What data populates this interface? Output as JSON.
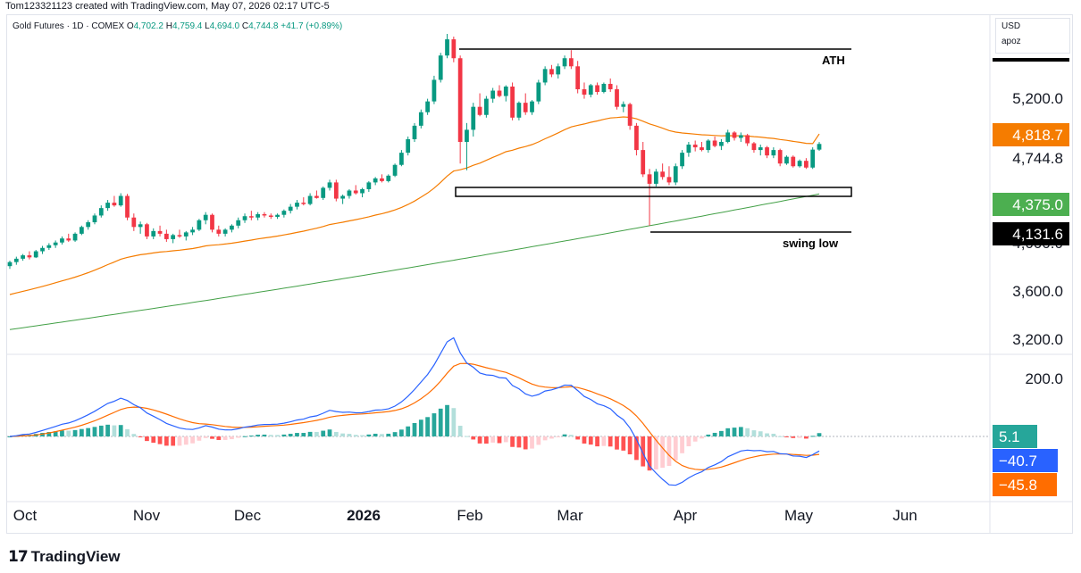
{
  "header": {
    "credit": "Tom123321123 created with TradingView.com, May 07, 2026 02:17 UTC-5"
  },
  "legend": {
    "symbol": "Gold Futures · 1D · COMEX",
    "o_label": "O",
    "o_value": "4,702.2",
    "h_label": "H",
    "h_value": "4,759.4",
    "l_label": "L",
    "l_value": "4,694.0",
    "c_label": "C",
    "c_value": "4,744.8",
    "change": "+41.7 (+0.89%)"
  },
  "currency_box": {
    "currency": "USD",
    "unit": "apoz"
  },
  "footer": {
    "brand": "TradingView"
  },
  "chart_data": [
    {
      "type": "line",
      "series_type": "candlestick",
      "y_ticks": [
        "5,200.0",
        "4,000.0",
        "3,600.0",
        "3,200.0"
      ],
      "x_ticks": [
        "Oct",
        "Nov",
        "Dec",
        "2026",
        "Feb",
        "Mar",
        "Apr",
        "May",
        "Jun"
      ],
      "ylim": [
        3200,
        5560
      ],
      "candles": [
        [
          3840,
          3880,
          3820,
          3870
        ],
        [
          3870,
          3910,
          3850,
          3895
        ],
        [
          3895,
          3930,
          3880,
          3920
        ],
        [
          3920,
          3950,
          3890,
          3905
        ],
        [
          3905,
          3960,
          3900,
          3950
        ],
        [
          3950,
          3990,
          3930,
          3975
        ],
        [
          3975,
          4010,
          3960,
          3995
        ],
        [
          3995,
          4030,
          3975,
          4015
        ],
        [
          4015,
          4060,
          4000,
          4045
        ],
        [
          4045,
          4080,
          4020,
          4030
        ],
        [
          4030,
          4090,
          4020,
          4080
        ],
        [
          4080,
          4140,
          4070,
          4130
        ],
        [
          4130,
          4180,
          4110,
          4165
        ],
        [
          4165,
          4230,
          4150,
          4215
        ],
        [
          4215,
          4290,
          4200,
          4270
        ],
        [
          4270,
          4330,
          4250,
          4310
        ],
        [
          4310,
          4360,
          4280,
          4290
        ],
        [
          4290,
          4380,
          4280,
          4360
        ],
        [
          4360,
          4375,
          4180,
          4200
        ],
        [
          4200,
          4230,
          4100,
          4130
        ],
        [
          4130,
          4170,
          4080,
          4150
        ],
        [
          4150,
          4160,
          4040,
          4060
        ],
        [
          4060,
          4120,
          4040,
          4100
        ],
        [
          4100,
          4140,
          4060,
          4080
        ],
        [
          4080,
          4110,
          4020,
          4040
        ],
        [
          4040,
          4080,
          4010,
          4070
        ],
        [
          4070,
          4110,
          4050,
          4060
        ],
        [
          4060,
          4100,
          4030,
          4090
        ],
        [
          4090,
          4130,
          4070,
          4110
        ],
        [
          4110,
          4190,
          4100,
          4180
        ],
        [
          4180,
          4240,
          4150,
          4220
        ],
        [
          4220,
          4230,
          4090,
          4110
        ],
        [
          4110,
          4140,
          4060,
          4080
        ],
        [
          4080,
          4120,
          4060,
          4110
        ],
        [
          4110,
          4150,
          4090,
          4140
        ],
        [
          4140,
          4200,
          4120,
          4180
        ],
        [
          4180,
          4230,
          4160,
          4210
        ],
        [
          4210,
          4250,
          4180,
          4200
        ],
        [
          4200,
          4240,
          4180,
          4225
        ],
        [
          4225,
          4240,
          4200,
          4215
        ],
        [
          4215,
          4230,
          4190,
          4205
        ],
        [
          4205,
          4230,
          4190,
          4220
        ],
        [
          4220,
          4260,
          4200,
          4250
        ],
        [
          4250,
          4300,
          4230,
          4280
        ],
        [
          4280,
          4330,
          4260,
          4310
        ],
        [
          4310,
          4350,
          4290,
          4300
        ],
        [
          4300,
          4380,
          4290,
          4360
        ],
        [
          4360,
          4400,
          4340,
          4345
        ],
        [
          4345,
          4430,
          4330,
          4420
        ],
        [
          4420,
          4480,
          4400,
          4460
        ],
        [
          4460,
          4480,
          4320,
          4340
        ],
        [
          4340,
          4370,
          4300,
          4360
        ],
        [
          4360,
          4410,
          4340,
          4400
        ],
        [
          4400,
          4440,
          4370,
          4380
        ],
        [
          4380,
          4420,
          4350,
          4410
        ],
        [
          4410,
          4470,
          4390,
          4460
        ],
        [
          4460,
          4500,
          4440,
          4490
        ],
        [
          4490,
          4520,
          4460,
          4470
        ],
        [
          4470,
          4520,
          4460,
          4510
        ],
        [
          4510,
          4600,
          4500,
          4590
        ],
        [
          4590,
          4700,
          4580,
          4680
        ],
        [
          4680,
          4800,
          4660,
          4780
        ],
        [
          4780,
          4900,
          4760,
          4880
        ],
        [
          4880,
          5000,
          4860,
          4980
        ],
        [
          4980,
          5080,
          4960,
          5060
        ],
        [
          5060,
          5250,
          5040,
          5220
        ],
        [
          5220,
          5420,
          5200,
          5400
        ],
        [
          5400,
          5560,
          5380,
          5520
        ],
        [
          5520,
          5540,
          5350,
          5380
        ],
        [
          5380,
          5400,
          4600,
          4760
        ],
        [
          4760,
          4900,
          4550,
          4850
        ],
        [
          4850,
          5050,
          4800,
          5020
        ],
        [
          5020,
          5120,
          4950,
          4960
        ],
        [
          4960,
          5100,
          4940,
          5080
        ],
        [
          5080,
          5160,
          5050,
          5140
        ],
        [
          5140,
          5180,
          5090,
          5100
        ],
        [
          5100,
          5180,
          5060,
          5170
        ],
        [
          5170,
          5200,
          4920,
          4940
        ],
        [
          4940,
          5060,
          4920,
          5050
        ],
        [
          5050,
          5120,
          4960,
          4980
        ],
        [
          4980,
          5070,
          4960,
          5060
        ],
        [
          5060,
          5220,
          5040,
          5200
        ],
        [
          5200,
          5320,
          5180,
          5300
        ],
        [
          5300,
          5330,
          5240,
          5260
        ],
        [
          5260,
          5340,
          5230,
          5320
        ],
        [
          5320,
          5400,
          5300,
          5380
        ],
        [
          5380,
          5440,
          5300,
          5320
        ],
        [
          5320,
          5360,
          5120,
          5150
        ],
        [
          5150,
          5200,
          5080,
          5110
        ],
        [
          5110,
          5190,
          5090,
          5180
        ],
        [
          5180,
          5200,
          5110,
          5130
        ],
        [
          5130,
          5200,
          5120,
          5190
        ],
        [
          5190,
          5230,
          5130,
          5150
        ],
        [
          5150,
          5180,
          5000,
          5020
        ],
        [
          5020,
          5060,
          4980,
          5040
        ],
        [
          5040,
          5050,
          4850,
          4880
        ],
        [
          4880,
          4900,
          4660,
          4700
        ],
        [
          4700,
          4760,
          4500,
          4520
        ],
        [
          4520,
          4560,
          4140,
          4450
        ],
        [
          4450,
          4560,
          4430,
          4540
        ],
        [
          4540,
          4600,
          4480,
          4500
        ],
        [
          4500,
          4580,
          4440,
          4460
        ],
        [
          4460,
          4600,
          4440,
          4580
        ],
        [
          4580,
          4700,
          4560,
          4680
        ],
        [
          4680,
          4760,
          4650,
          4740
        ],
        [
          4740,
          4770,
          4690,
          4720
        ],
        [
          4720,
          4760,
          4690,
          4700
        ],
        [
          4700,
          4780,
          4680,
          4770
        ],
        [
          4770,
          4800,
          4720,
          4730
        ],
        [
          4730,
          4780,
          4700,
          4760
        ],
        [
          4760,
          4850,
          4750,
          4830
        ],
        [
          4830,
          4840,
          4770,
          4790
        ],
        [
          4790,
          4830,
          4760,
          4810
        ],
        [
          4810,
          4820,
          4730,
          4750
        ],
        [
          4750,
          4760,
          4680,
          4700
        ],
        [
          4700,
          4740,
          4660,
          4720
        ],
        [
          4720,
          4730,
          4640,
          4660
        ],
        [
          4660,
          4720,
          4640,
          4700
        ],
        [
          4700,
          4710,
          4580,
          4600
        ],
        [
          4600,
          4660,
          4590,
          4650
        ],
        [
          4650,
          4660,
          4570,
          4580
        ],
        [
          4580,
          4630,
          4570,
          4620
        ],
        [
          4620,
          4640,
          4560,
          4570
        ],
        [
          4570,
          4720,
          4560,
          4703
        ],
        [
          4703,
          4759,
          4694,
          4745
        ]
      ],
      "ma_orange": {
        "start": 3630,
        "end": 4818.7
      },
      "ma_green": {
        "start": 3370,
        "end": 4375.0
      },
      "price_labels": [
        {
          "value": "4,818.7",
          "color": "#f57c00"
        },
        {
          "value": "4,744.8",
          "color": "#ffffff"
        },
        {
          "value": "4,375.0",
          "color": "#4caf50"
        },
        {
          "value": "4,131.6",
          "color": "#000000"
        }
      ],
      "annotations": [
        {
          "label": "ATH",
          "value": 5560
        },
        {
          "label": "swing low",
          "value": 4140
        }
      ],
      "support_zone": [
        4510,
        4580
      ]
    },
    {
      "type": "bar",
      "indicator": "MACD",
      "y_ticks": [
        "200.0"
      ],
      "ylim": [
        -230,
        230
      ],
      "values_labels": [
        {
          "value": "5.1",
          "color": "#26a69a"
        },
        {
          "value": "−40.7",
          "color": "#2962ff"
        },
        {
          "value": "−45.8",
          "color": "#ff6d00"
        }
      ]
    }
  ]
}
